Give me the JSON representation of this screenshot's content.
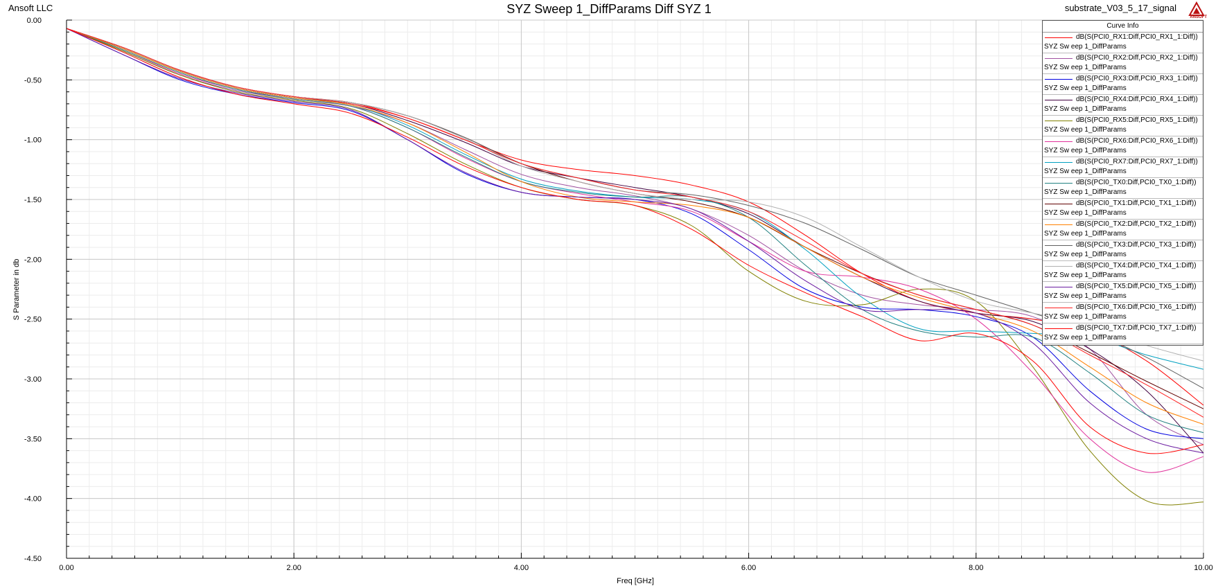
{
  "header": {
    "company": "Ansoft LLC",
    "title": "SYZ Sweep 1_DiffParams Diff SYZ 1",
    "project": "substrate_V03_5_17_signal",
    "logo_text": "ANSOFT"
  },
  "legend": {
    "title": "Curve Info",
    "subtitle": "SYZ Sw eep 1_DiffParams"
  },
  "chart_data": {
    "type": "line",
    "xlabel": "Freq [GHz]",
    "ylabel": "S Parameter in db",
    "xlim": [
      0,
      10
    ],
    "ylim": [
      -4.5,
      0
    ],
    "x_ticks": [
      "0.00",
      "2.00",
      "4.00",
      "6.00",
      "8.00",
      "10.00"
    ],
    "y_ticks": [
      "0.00",
      "-0.50",
      "-1.00",
      "-1.50",
      "-2.00",
      "-2.50",
      "-3.00",
      "-3.50",
      "-4.00",
      "-4.50"
    ],
    "grid": true,
    "legend_position": "top-right",
    "x": [
      0,
      0.5,
      1,
      1.5,
      2,
      2.5,
      3,
      3.5,
      4,
      4.5,
      5,
      5.5,
      6,
      6.5,
      7,
      7.5,
      8,
      8.5,
      9,
      9.5,
      10
    ],
    "series": [
      {
        "name": "dB(S(PCI0_RX1:Diff,PCI0_RX1_1:Diff))",
        "color": "#ff0000",
        "values": [
          -0.07,
          -0.23,
          -0.42,
          -0.56,
          -0.64,
          -0.69,
          -0.82,
          -1.0,
          -1.17,
          -1.25,
          -1.3,
          -1.38,
          -1.52,
          -1.8,
          -2.12,
          -2.35,
          -2.45,
          -2.5,
          -2.6,
          -2.85,
          -3.22
        ]
      },
      {
        "name": "dB(S(PCI0_RX2:Diff,PCI0_RX2_1:Diff))",
        "color": "#a050a0",
        "values": [
          -0.07,
          -0.26,
          -0.46,
          -0.59,
          -0.66,
          -0.72,
          -0.86,
          -1.08,
          -1.29,
          -1.4,
          -1.47,
          -1.58,
          -1.8,
          -2.1,
          -2.3,
          -2.38,
          -2.42,
          -2.48,
          -2.75,
          -3.3,
          -3.55
        ]
      },
      {
        "name": "dB(S(PCI0_RX3:Diff,PCI0_RX3_1:Diff))",
        "color": "#0000e0",
        "values": [
          -0.07,
          -0.29,
          -0.5,
          -0.62,
          -0.69,
          -0.76,
          -1.0,
          -1.28,
          -1.44,
          -1.48,
          -1.5,
          -1.62,
          -1.92,
          -2.25,
          -2.4,
          -2.42,
          -2.48,
          -2.65,
          -3.1,
          -3.42,
          -3.5
        ]
      },
      {
        "name": "dB(S(PCI0_RX4:Diff,PCI0_RX4_1:Diff))",
        "color": "#400040",
        "values": [
          -0.07,
          -0.24,
          -0.43,
          -0.57,
          -0.65,
          -0.7,
          -0.84,
          -1.02,
          -1.22,
          -1.32,
          -1.4,
          -1.48,
          -1.62,
          -1.9,
          -2.15,
          -2.35,
          -2.45,
          -2.52,
          -2.75,
          -3.1,
          -3.62
        ]
      },
      {
        "name": "dB(S(PCI0_RX5:Diff,PCI0_RX5_1:Diff))",
        "color": "#808000",
        "values": [
          -0.07,
          -0.26,
          -0.46,
          -0.6,
          -0.67,
          -0.74,
          -0.95,
          -1.2,
          -1.4,
          -1.5,
          -1.55,
          -1.72,
          -2.1,
          -2.35,
          -2.38,
          -2.25,
          -2.35,
          -2.9,
          -3.6,
          -4.02,
          -4.03
        ]
      },
      {
        "name": "dB(S(PCI0_RX6:Diff,PCI0_RX6_1:Diff))",
        "color": "#e0309a",
        "values": [
          -0.07,
          -0.25,
          -0.45,
          -0.58,
          -0.66,
          -0.72,
          -0.9,
          -1.15,
          -1.35,
          -1.45,
          -1.52,
          -1.6,
          -1.85,
          -2.1,
          -2.15,
          -2.25,
          -2.5,
          -2.95,
          -3.5,
          -3.78,
          -3.65
        ]
      },
      {
        "name": "dB(S(PCI0_RX7:Diff,PCI0_RX7_1:Diff))",
        "color": "#00a0c0",
        "values": [
          -0.07,
          -0.24,
          -0.43,
          -0.57,
          -0.65,
          -0.71,
          -0.88,
          -1.12,
          -1.33,
          -1.43,
          -1.48,
          -1.5,
          -1.6,
          -1.92,
          -2.32,
          -2.58,
          -2.6,
          -2.62,
          -2.65,
          -2.8,
          -2.92
        ]
      },
      {
        "name": "dB(S(PCI0_TX0:Diff,PCI0_TX0_1:Diff))",
        "color": "#208080",
        "values": [
          -0.07,
          -0.25,
          -0.44,
          -0.58,
          -0.66,
          -0.72,
          -0.9,
          -1.14,
          -1.35,
          -1.44,
          -1.48,
          -1.48,
          -1.65,
          -2.05,
          -2.42,
          -2.6,
          -2.65,
          -2.65,
          -2.95,
          -3.3,
          -3.45
        ]
      },
      {
        "name": "dB(S(PCI0_TX1:Diff,PCI0_TX1_1:Diff))",
        "color": "#600000",
        "values": [
          -0.07,
          -0.23,
          -0.42,
          -0.56,
          -0.64,
          -0.69,
          -0.8,
          -0.98,
          -1.2,
          -1.35,
          -1.45,
          -1.52,
          -1.65,
          -1.9,
          -2.12,
          -2.3,
          -2.42,
          -2.55,
          -2.78,
          -3.02,
          -3.25
        ]
      },
      {
        "name": "dB(S(PCI0_TX2:Diff,PCI0_TX2_1:Diff))",
        "color": "#ff8000",
        "values": [
          -0.07,
          -0.24,
          -0.43,
          -0.57,
          -0.65,
          -0.71,
          -0.86,
          -1.1,
          -1.35,
          -1.48,
          -1.52,
          -1.55,
          -1.65,
          -1.9,
          -2.15,
          -2.32,
          -2.45,
          -2.6,
          -2.9,
          -3.2,
          -3.38
        ]
      },
      {
        "name": "dB(S(PCI0_TX3:Diff,PCI0_TX3_1:Diff))",
        "color": "#606060",
        "values": [
          -0.07,
          -0.23,
          -0.42,
          -0.56,
          -0.64,
          -0.69,
          -0.8,
          -0.98,
          -1.2,
          -1.32,
          -1.42,
          -1.46,
          -1.55,
          -1.7,
          -1.92,
          -2.15,
          -2.3,
          -2.45,
          -2.6,
          -2.82,
          -3.08
        ]
      },
      {
        "name": "dB(S(PCI0_TX4:Diff,PCI0_TX4_1:Diff))",
        "color": "#b0b0b0",
        "values": [
          -0.07,
          -0.23,
          -0.42,
          -0.56,
          -0.64,
          -0.69,
          -0.8,
          -0.99,
          -1.22,
          -1.35,
          -1.45,
          -1.5,
          -1.52,
          -1.65,
          -1.9,
          -2.15,
          -2.35,
          -2.45,
          -2.55,
          -2.72,
          -2.85
        ]
      },
      {
        "name": "dB(S(PCI0_TX5:Diff,PCI0_TX5_1:Diff))",
        "color": "#6a1aa0",
        "values": [
          -0.07,
          -0.29,
          -0.49,
          -0.61,
          -0.68,
          -0.75,
          -1.0,
          -1.27,
          -1.44,
          -1.48,
          -1.5,
          -1.58,
          -1.85,
          -2.18,
          -2.42,
          -2.42,
          -2.45,
          -2.7,
          -3.2,
          -3.5,
          -3.62
        ]
      },
      {
        "name": "dB(S(PCI0_TX6:Diff,PCI0_TX6_1:Diff))",
        "color": "#ff2020",
        "values": [
          -0.07,
          -0.23,
          -0.42,
          -0.56,
          -0.64,
          -0.7,
          -0.82,
          -1.0,
          -1.2,
          -1.32,
          -1.42,
          -1.48,
          -1.6,
          -1.85,
          -2.12,
          -2.3,
          -2.42,
          -2.55,
          -2.8,
          -3.05,
          -3.32
        ]
      },
      {
        "name": "dB(S(PCI0_TX7:Diff,PCI0_TX7_1:Diff))",
        "color": "#ff0000",
        "values": [
          -0.07,
          -0.27,
          -0.48,
          -0.62,
          -0.7,
          -0.78,
          -0.98,
          -1.22,
          -1.4,
          -1.5,
          -1.55,
          -1.75,
          -2.05,
          -2.28,
          -2.48,
          -2.68,
          -2.62,
          -2.85,
          -3.4,
          -3.62,
          -3.55
        ]
      }
    ]
  }
}
